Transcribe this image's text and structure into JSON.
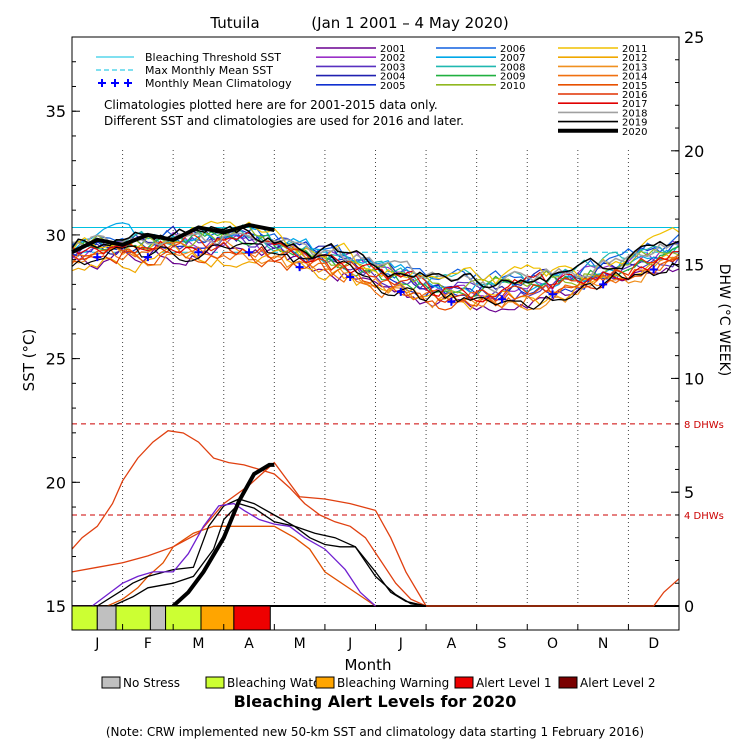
{
  "chart_data": {
    "type": "line",
    "title": "Tutuila",
    "date_range": "(Jan 1 2001 – 4 May 2020)",
    "xlabel": "Month",
    "ylabel_left": "SST (°C)",
    "ylabel_right": "DHW (°C WEEK)",
    "months": [
      "J",
      "F",
      "M",
      "A",
      "M",
      "J",
      "J",
      "A",
      "S",
      "O",
      "N",
      "D"
    ],
    "y_left": {
      "ticks": [
        15,
        20,
        25,
        30,
        35
      ],
      "range": [
        15,
        38
      ]
    },
    "y_right": {
      "ticks": [
        0,
        5,
        10,
        15,
        20,
        25
      ],
      "range": [
        0,
        25
      ]
    },
    "bleaching_threshold_sst": 30.3,
    "max_monthly_mean_sst": 29.3,
    "dhw_reference_lines": [
      {
        "value": 8,
        "label": "8 DHWs"
      },
      {
        "value": 4,
        "label": "4 DHWs"
      }
    ],
    "monthly_mean_climatology": [
      29.1,
      29.1,
      29.3,
      29.3,
      28.7,
      28.3,
      27.7,
      27.3,
      27.4,
      27.6,
      28.0,
      28.6
    ],
    "legend_static": [
      {
        "label": "Bleaching Threshold SST",
        "color": "#00c0e0",
        "style": "solid"
      },
      {
        "label": "Max Monthly Mean SST",
        "color": "#00c0e0",
        "style": "dashed"
      },
      {
        "label": "Monthly Mean Climatology",
        "color": "#0000ff",
        "style": "plus"
      }
    ],
    "notes": [
      "Climatologies plotted here are for 2001-2015 data only.",
      "Different SST and climatologies are used for 2016 and later."
    ],
    "years": [
      {
        "name": "2001",
        "color": "#6a0090",
        "w": 1.2
      },
      {
        "name": "2002",
        "color": "#9a30c8",
        "w": 1.2
      },
      {
        "name": "2003",
        "color": "#5830c0",
        "w": 1.2
      },
      {
        "name": "2004",
        "color": "#2020b0",
        "w": 1.2
      },
      {
        "name": "2005",
        "color": "#1030d0",
        "w": 1.2
      },
      {
        "name": "2006",
        "color": "#1060e0",
        "w": 1.2
      },
      {
        "name": "2007",
        "color": "#00a8e8",
        "w": 1.2
      },
      {
        "name": "2008",
        "color": "#20b8b0",
        "w": 1.2
      },
      {
        "name": "2009",
        "color": "#20b040",
        "w": 1.2
      },
      {
        "name": "2010",
        "color": "#90b820",
        "w": 1.2
      },
      {
        "name": "2011",
        "color": "#f0c000",
        "w": 1.2
      },
      {
        "name": "2012",
        "color": "#f0a800",
        "w": 1.2
      },
      {
        "name": "2013",
        "color": "#f09020",
        "w": 1.2
      },
      {
        "name": "2014",
        "color": "#f07010",
        "w": 1.2
      },
      {
        "name": "2015",
        "color": "#e85000",
        "w": 1.2
      },
      {
        "name": "2016",
        "color": "#e03000",
        "w": 1.2
      },
      {
        "name": "2017",
        "color": "#e00000",
        "w": 1.2
      },
      {
        "name": "2018",
        "color": "#a0a0a0",
        "w": 1.5
      },
      {
        "name": "2019",
        "color": "#000000",
        "w": 1.2
      },
      {
        "name": "2020",
        "color": "#000000",
        "w": 4
      }
    ],
    "sst_2020": {
      "x": [
        0,
        0.5,
        1,
        1.5,
        2,
        2.5,
        3,
        3.5,
        4
      ],
      "y": [
        29.3,
        29.8,
        29.6,
        30.0,
        29.8,
        30.3,
        30.1,
        30.4,
        30.2
      ]
    },
    "dhw_series": [
      {
        "name": "2015",
        "color": "#e05000",
        "x": [
          0.0,
          0.7,
          1.0,
          1.3,
          1.5,
          1.8,
          2.0,
          2.4,
          2.8,
          3.2,
          3.6,
          4.0,
          4.4,
          4.7,
          5.0,
          6.0
        ],
        "y": [
          0,
          0,
          0.3,
          0.8,
          1.3,
          1.9,
          2.6,
          3.2,
          3.5,
          3.5,
          3.5,
          3.5,
          3.0,
          2.5,
          1.5,
          0
        ]
      },
      {
        "name": "2016",
        "color": "#e04010",
        "x": [
          0,
          0.2,
          0.5,
          0.8,
          1.0,
          1.3,
          1.6,
          1.9,
          2.2,
          2.5,
          2.8,
          3.1,
          3.4,
          3.7,
          4.0,
          4.3,
          4.6,
          4.9,
          5.2,
          5.5,
          5.8,
          6.1,
          6.4,
          6.7,
          7.0,
          8.0,
          9.0,
          9.3,
          9.6,
          9.9,
          10.2,
          10.5,
          10.8,
          11.1,
          11.3,
          11.5,
          11.7,
          12.0
        ],
        "y": [
          2.5,
          3.0,
          3.5,
          4.5,
          5.5,
          6.5,
          7.2,
          7.7,
          7.6,
          7.2,
          6.5,
          6.3,
          6.2,
          6.0,
          5.8,
          5.2,
          4.5,
          4.0,
          3.7,
          3.5,
          3.0,
          2.0,
          1.0,
          0.3,
          0,
          0,
          0,
          0,
          0,
          0,
          0,
          0,
          0,
          0,
          0,
          0,
          0.6,
          1.2
        ]
      },
      {
        "name": "2017",
        "color": "#e04010",
        "x": [
          0,
          0.5,
          1.0,
          1.5,
          2.0,
          2.5,
          3.0,
          3.5,
          4.0,
          4.5,
          5.0,
          5.5,
          6.0,
          6.3,
          6.6,
          7.0
        ],
        "y": [
          1.5,
          1.7,
          1.9,
          2.2,
          2.6,
          3.2,
          4.5,
          5.3,
          6.3,
          4.8,
          4.7,
          4.5,
          4.2,
          3.0,
          1.5,
          0
        ]
      },
      {
        "name": "2019",
        "color": "#000000",
        "x": [
          0,
          0.5,
          1.0,
          1.2,
          1.5,
          2.0,
          2.4,
          2.7,
          3.0,
          3.3,
          3.6,
          4.0,
          4.4,
          4.7,
          5.0,
          5.3,
          5.6,
          6.0,
          6.4,
          6.7,
          7.0
        ],
        "y": [
          0,
          0,
          0.7,
          1.0,
          1.3,
          1.6,
          1.7,
          3.5,
          4.4,
          4.7,
          4.5,
          4.0,
          3.5,
          3.0,
          2.7,
          2.6,
          2.6,
          1.3,
          0.5,
          0.1,
          0
        ]
      },
      {
        "name": "2019b",
        "color": "#000000",
        "x": [
          0,
          0.8,
          1.2,
          1.5,
          2.0,
          2.4,
          2.8,
          3.0,
          3.3,
          3.6,
          4.0,
          4.4,
          4.8,
          5.2,
          5.6,
          6.0,
          6.3,
          6.6,
          7.0
        ],
        "y": [
          0,
          0,
          0.4,
          0.8,
          1.0,
          1.3,
          2.5,
          3.8,
          4.5,
          4.3,
          3.7,
          3.5,
          3.2,
          3.0,
          2.6,
          1.5,
          0.6,
          0.2,
          0
        ]
      },
      {
        "name": "2002",
        "color": "#7020d0",
        "x": [
          0,
          0.4,
          0.7,
          1.0,
          1.3,
          1.6,
          2.0,
          2.3,
          2.6,
          2.9,
          3.2,
          3.4,
          3.7,
          4.0,
          4.3,
          4.6,
          5.0,
          5.4,
          5.7,
          6.0
        ],
        "y": [
          0,
          0,
          0.5,
          1.0,
          1.3,
          1.5,
          1.5,
          2.3,
          3.5,
          4.4,
          4.5,
          4.2,
          3.8,
          3.6,
          3.5,
          3.0,
          2.5,
          1.6,
          0.6,
          0
        ]
      },
      {
        "name": "2020",
        "color": "#000000",
        "x": [
          2.0,
          2.3,
          2.6,
          3.0,
          3.3,
          3.6,
          3.9,
          4.0
        ],
        "y": [
          0,
          0.6,
          1.5,
          3.0,
          4.6,
          5.8,
          6.2,
          6.2
        ]
      }
    ],
    "alert_levels": [
      {
        "label": "No Stress",
        "color": "#c0c0c0"
      },
      {
        "label": "Bleaching Watch",
        "color": "#ccff33"
      },
      {
        "label": "Bleaching Warning",
        "color": "#ffa500"
      },
      {
        "label": "Alert Level 1",
        "color": "#ee0000"
      },
      {
        "label": "Alert Level 2",
        "color": "#7a0000"
      }
    ],
    "alert_strip_2020": [
      {
        "from": 0.0,
        "to": 0.5,
        "level": 1
      },
      {
        "from": 0.5,
        "to": 0.87,
        "level": 0
      },
      {
        "from": 0.87,
        "to": 1.55,
        "level": 1
      },
      {
        "from": 1.55,
        "to": 1.85,
        "level": 0
      },
      {
        "from": 1.85,
        "to": 2.55,
        "level": 1
      },
      {
        "from": 2.55,
        "to": 3.2,
        "level": 2
      },
      {
        "from": 3.2,
        "to": 3.92,
        "level": 3
      }
    ],
    "alert_title": "Bleaching Alert Levels for 2020",
    "footnote": "(Note: CRW implemented new 50-km SST and climatology data starting 1 February 2016)"
  }
}
